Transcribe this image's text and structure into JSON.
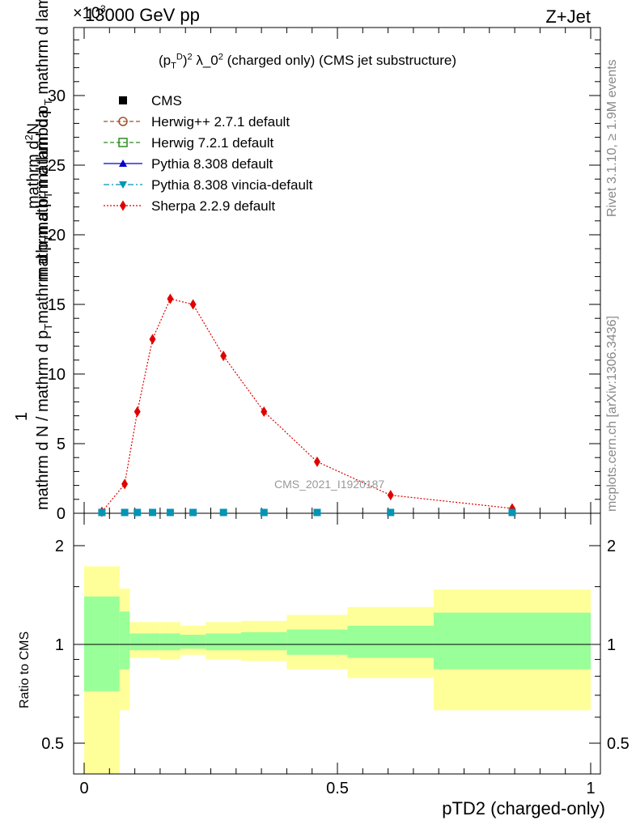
{
  "header": {
    "energy": "13000 GeV pp",
    "process": "Z+Jet",
    "exponent": "×10",
    "exponent_sup": "3"
  },
  "side_labels": {
    "rivet": "Rivet 3.1.10, ≥ 1.9M events",
    "mcplots": "mcplots.cern.ch [arXiv:1306.3436]"
  },
  "watermark": "CMS_2021_I1920187",
  "main_title": "(p_T^D)^2 λ_0^2 (charged only) (CMS jet substructure)",
  "ylabel_main": "1 / mathrm d N / mathrm d p_T mathrm d p_T mathrm d lambda  —  mathrm d^2N",
  "ylabel_ratio": "Ratio to CMS",
  "xlabel": "pTD2 (charged-only)",
  "chart_data": [
    {
      "type": "scatter",
      "panel": "main",
      "title": "(p_T^D)^2 λ_0^2 (charged only) (CMS jet substructure)",
      "xlabel": "pTD2 (charged-only)",
      "xlim": [
        0,
        1
      ],
      "ylim": [
        0,
        35
      ],
      "y_multiplier": "×10^3",
      "yticks": [
        0,
        5,
        10,
        15,
        20,
        25,
        30
      ],
      "xticks": [
        0,
        0.5,
        1
      ],
      "legend_placement": "top-left",
      "series": [
        {
          "name": "CMS",
          "color": "#000000",
          "marker": "square",
          "x": [
            0.035,
            0.08,
            0.105,
            0.135,
            0.17,
            0.215,
            0.275,
            0.355,
            0.46,
            0.605,
            0.845
          ],
          "y": [
            0.05,
            0.05,
            0.05,
            0.05,
            0.05,
            0.05,
            0.05,
            0.05,
            0.05,
            0.05,
            0.05
          ]
        },
        {
          "name": "Herwig++ 2.7.1 default",
          "color": "#a0522d",
          "marker": "circle-open",
          "line": "dashed",
          "x": [],
          "y": []
        },
        {
          "name": "Herwig 7.2.1 default",
          "color": "#2e8b22",
          "marker": "square-open",
          "line": "dashed",
          "x": [],
          "y": []
        },
        {
          "name": "Pythia 8.308 default",
          "color": "#0000cd",
          "marker": "triangle-up",
          "line": "solid",
          "x": [],
          "y": []
        },
        {
          "name": "Pythia 8.308 vincia-default",
          "color": "#0095b5",
          "marker": "triangle-down",
          "line": "dashdot",
          "x": [],
          "y": []
        },
        {
          "name": "Sherpa 2.2.9 default",
          "color": "#e00000",
          "marker": "diamond",
          "line": "dotted",
          "x": [
            0.035,
            0.08,
            0.105,
            0.135,
            0.17,
            0.215,
            0.275,
            0.355,
            0.46,
            0.605,
            0.845
          ],
          "y": [
            0.1,
            2.1,
            7.3,
            12.5,
            15.4,
            15.0,
            11.3,
            7.3,
            3.7,
            1.3,
            0.35
          ]
        }
      ]
    },
    {
      "type": "area",
      "panel": "ratio",
      "ylabel": "Ratio to CMS",
      "xlabel": "pTD2 (charged-only)",
      "xlim": [
        0,
        1
      ],
      "ylim": [
        0.35,
        2.3
      ],
      "yticks": [
        0.5,
        1,
        2
      ],
      "xticks": [
        0,
        0.5,
        1
      ],
      "bins": [
        {
          "x0": 0.0,
          "x1": 0.07,
          "stat_lo": 0.72,
          "stat_hi": 1.4,
          "tot_lo": 0.3,
          "tot_hi": 1.73
        },
        {
          "x0": 0.07,
          "x1": 0.09,
          "stat_lo": 0.84,
          "stat_hi": 1.26,
          "tot_lo": 0.63,
          "tot_hi": 1.48
        },
        {
          "x0": 0.09,
          "x1": 0.15,
          "stat_lo": 0.96,
          "stat_hi": 1.08,
          "tot_lo": 0.91,
          "tot_hi": 1.17
        },
        {
          "x0": 0.15,
          "x1": 0.19,
          "stat_lo": 0.96,
          "stat_hi": 1.08,
          "tot_lo": 0.9,
          "tot_hi": 1.17
        },
        {
          "x0": 0.19,
          "x1": 0.24,
          "stat_lo": 0.97,
          "stat_hi": 1.07,
          "tot_lo": 0.93,
          "tot_hi": 1.14
        },
        {
          "x0": 0.24,
          "x1": 0.31,
          "stat_lo": 0.96,
          "stat_hi": 1.08,
          "tot_lo": 0.9,
          "tot_hi": 1.17
        },
        {
          "x0": 0.31,
          "x1": 0.4,
          "stat_lo": 0.96,
          "stat_hi": 1.09,
          "tot_lo": 0.89,
          "tot_hi": 1.18
        },
        {
          "x0": 0.4,
          "x1": 0.52,
          "stat_lo": 0.93,
          "stat_hi": 1.11,
          "tot_lo": 0.84,
          "tot_hi": 1.23
        },
        {
          "x0": 0.52,
          "x1": 0.69,
          "stat_lo": 0.91,
          "stat_hi": 1.14,
          "tot_lo": 0.79,
          "tot_hi": 1.3
        },
        {
          "x0": 0.69,
          "x1": 1.0,
          "stat_lo": 0.84,
          "stat_hi": 1.25,
          "tot_lo": 0.63,
          "tot_hi": 1.47
        }
      ],
      "stat_color": "#99ff99",
      "total_color": "#ffff99"
    }
  ]
}
